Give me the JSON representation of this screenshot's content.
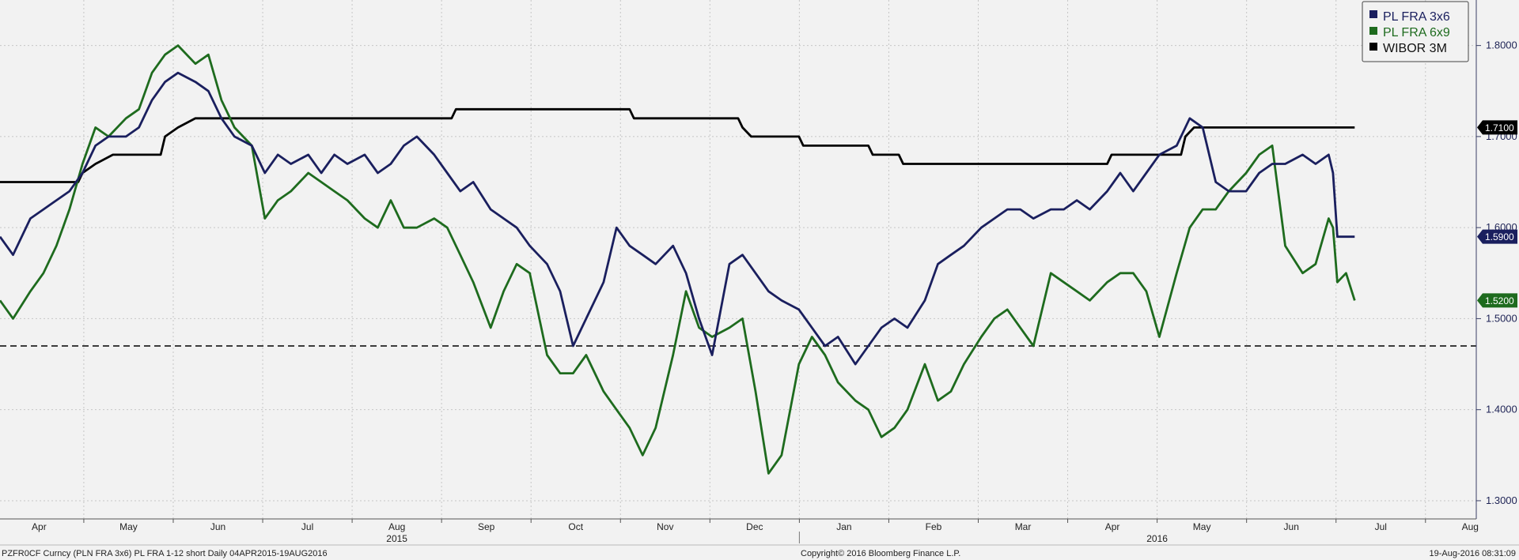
{
  "chart_data": {
    "type": "line",
    "title": "",
    "xlabel": "",
    "ylabel": "",
    "ylim": [
      1.28,
      1.85
    ],
    "y_ticks": [
      "1.3000",
      "1.4000",
      "1.5000",
      "1.6000",
      "1.7000",
      "1.8000"
    ],
    "x_months": [
      "Apr",
      "May",
      "Jun",
      "Jul",
      "Aug",
      "Sep",
      "Oct",
      "Nov",
      "Dec",
      "Jan",
      "Feb",
      "Mar",
      "Apr",
      "May",
      "Jun",
      "Jul",
      "Aug"
    ],
    "x_years": [
      "2015",
      "2016"
    ],
    "grid": true,
    "legend_position": "top-right",
    "reference_line": 1.47,
    "series": [
      {
        "name": "PL FRA 3x6",
        "color": "#1a1f5e",
        "last_label": "1.5900",
        "points": [
          [
            0,
            1.59
          ],
          [
            3,
            1.57
          ],
          [
            7,
            1.61
          ],
          [
            10,
            1.62
          ],
          [
            13,
            1.63
          ],
          [
            16,
            1.64
          ],
          [
            19,
            1.66
          ],
          [
            22,
            1.69
          ],
          [
            25,
            1.7
          ],
          [
            29,
            1.7
          ],
          [
            32,
            1.71
          ],
          [
            35,
            1.74
          ],
          [
            38,
            1.76
          ],
          [
            41,
            1.77
          ],
          [
            45,
            1.76
          ],
          [
            48,
            1.75
          ],
          [
            51,
            1.72
          ],
          [
            54,
            1.7
          ],
          [
            58,
            1.69
          ],
          [
            61,
            1.66
          ],
          [
            64,
            1.68
          ],
          [
            67,
            1.67
          ],
          [
            71,
            1.68
          ],
          [
            74,
            1.66
          ],
          [
            77,
            1.68
          ],
          [
            80,
            1.67
          ],
          [
            84,
            1.68
          ],
          [
            87,
            1.66
          ],
          [
            90,
            1.67
          ],
          [
            93,
            1.69
          ],
          [
            96,
            1.7
          ],
          [
            100,
            1.68
          ],
          [
            103,
            1.66
          ],
          [
            106,
            1.64
          ],
          [
            109,
            1.65
          ],
          [
            113,
            1.62
          ],
          [
            116,
            1.61
          ],
          [
            119,
            1.6
          ],
          [
            122,
            1.58
          ],
          [
            126,
            1.56
          ],
          [
            129,
            1.53
          ],
          [
            132,
            1.47
          ],
          [
            135,
            1.5
          ],
          [
            139,
            1.54
          ],
          [
            142,
            1.6
          ],
          [
            145,
            1.58
          ],
          [
            148,
            1.57
          ],
          [
            151,
            1.56
          ],
          [
            155,
            1.58
          ],
          [
            158,
            1.55
          ],
          [
            161,
            1.5
          ],
          [
            164,
            1.46
          ],
          [
            168,
            1.56
          ],
          [
            171,
            1.57
          ],
          [
            174,
            1.55
          ],
          [
            177,
            1.53
          ],
          [
            180,
            1.52
          ],
          [
            184,
            1.51
          ],
          [
            187,
            1.49
          ],
          [
            190,
            1.47
          ],
          [
            193,
            1.48
          ],
          [
            197,
            1.45
          ],
          [
            200,
            1.47
          ],
          [
            203,
            1.49
          ],
          [
            206,
            1.5
          ],
          [
            209,
            1.49
          ],
          [
            213,
            1.52
          ],
          [
            216,
            1.56
          ],
          [
            219,
            1.57
          ],
          [
            222,
            1.58
          ],
          [
            226,
            1.6
          ],
          [
            229,
            1.61
          ],
          [
            232,
            1.62
          ],
          [
            235,
            1.62
          ],
          [
            238,
            1.61
          ],
          [
            242,
            1.62
          ],
          [
            245,
            1.62
          ],
          [
            248,
            1.63
          ],
          [
            251,
            1.62
          ],
          [
            255,
            1.64
          ],
          [
            258,
            1.66
          ],
          [
            261,
            1.64
          ],
          [
            264,
            1.66
          ],
          [
            267,
            1.68
          ],
          [
            271,
            1.69
          ],
          [
            274,
            1.72
          ],
          [
            277,
            1.71
          ],
          [
            280,
            1.65
          ],
          [
            283,
            1.64
          ],
          [
            287,
            1.64
          ],
          [
            290,
            1.66
          ],
          [
            293,
            1.67
          ],
          [
            296,
            1.67
          ],
          [
            300,
            1.68
          ],
          [
            303,
            1.67
          ],
          [
            306,
            1.68
          ],
          [
            307,
            1.66
          ],
          [
            308,
            1.59
          ],
          [
            310,
            1.59
          ],
          [
            312,
            1.59
          ]
        ]
      },
      {
        "name": "PL FRA 6x9",
        "color": "#1e6b1e",
        "last_label": "1.5200",
        "points": [
          [
            0,
            1.52
          ],
          [
            3,
            1.5
          ],
          [
            7,
            1.53
          ],
          [
            10,
            1.55
          ],
          [
            13,
            1.58
          ],
          [
            16,
            1.62
          ],
          [
            19,
            1.67
          ],
          [
            22,
            1.71
          ],
          [
            25,
            1.7
          ],
          [
            29,
            1.72
          ],
          [
            32,
            1.73
          ],
          [
            35,
            1.77
          ],
          [
            38,
            1.79
          ],
          [
            41,
            1.8
          ],
          [
            45,
            1.78
          ],
          [
            48,
            1.79
          ],
          [
            51,
            1.74
          ],
          [
            54,
            1.71
          ],
          [
            58,
            1.69
          ],
          [
            61,
            1.61
          ],
          [
            64,
            1.63
          ],
          [
            67,
            1.64
          ],
          [
            71,
            1.66
          ],
          [
            74,
            1.65
          ],
          [
            77,
            1.64
          ],
          [
            80,
            1.63
          ],
          [
            84,
            1.61
          ],
          [
            87,
            1.6
          ],
          [
            90,
            1.63
          ],
          [
            93,
            1.6
          ],
          [
            96,
            1.6
          ],
          [
            100,
            1.61
          ],
          [
            103,
            1.6
          ],
          [
            106,
            1.57
          ],
          [
            109,
            1.54
          ],
          [
            113,
            1.49
          ],
          [
            116,
            1.53
          ],
          [
            119,
            1.56
          ],
          [
            122,
            1.55
          ],
          [
            126,
            1.46
          ],
          [
            129,
            1.44
          ],
          [
            132,
            1.44
          ],
          [
            135,
            1.46
          ],
          [
            139,
            1.42
          ],
          [
            142,
            1.4
          ],
          [
            145,
            1.38
          ],
          [
            148,
            1.35
          ],
          [
            151,
            1.38
          ],
          [
            155,
            1.46
          ],
          [
            158,
            1.53
          ],
          [
            161,
            1.49
          ],
          [
            164,
            1.48
          ],
          [
            168,
            1.49
          ],
          [
            171,
            1.5
          ],
          [
            174,
            1.42
          ],
          [
            177,
            1.33
          ],
          [
            180,
            1.35
          ],
          [
            184,
            1.45
          ],
          [
            187,
            1.48
          ],
          [
            190,
            1.46
          ],
          [
            193,
            1.43
          ],
          [
            197,
            1.41
          ],
          [
            200,
            1.4
          ],
          [
            203,
            1.37
          ],
          [
            206,
            1.38
          ],
          [
            209,
            1.4
          ],
          [
            213,
            1.45
          ],
          [
            216,
            1.41
          ],
          [
            219,
            1.42
          ],
          [
            222,
            1.45
          ],
          [
            226,
            1.48
          ],
          [
            229,
            1.5
          ],
          [
            232,
            1.51
          ],
          [
            235,
            1.49
          ],
          [
            238,
            1.47
          ],
          [
            242,
            1.55
          ],
          [
            245,
            1.54
          ],
          [
            248,
            1.53
          ],
          [
            251,
            1.52
          ],
          [
            255,
            1.54
          ],
          [
            258,
            1.55
          ],
          [
            261,
            1.55
          ],
          [
            264,
            1.53
          ],
          [
            267,
            1.48
          ],
          [
            271,
            1.55
          ],
          [
            274,
            1.6
          ],
          [
            277,
            1.62
          ],
          [
            280,
            1.62
          ],
          [
            283,
            1.64
          ],
          [
            287,
            1.66
          ],
          [
            290,
            1.68
          ],
          [
            293,
            1.69
          ],
          [
            296,
            1.58
          ],
          [
            300,
            1.55
          ],
          [
            303,
            1.56
          ],
          [
            306,
            1.61
          ],
          [
            307,
            1.6
          ],
          [
            308,
            1.54
          ],
          [
            310,
            1.55
          ],
          [
            312,
            1.52
          ]
        ]
      },
      {
        "name": "WIBOR 3M",
        "color": "#000000",
        "last_label": "1.7100",
        "points": [
          [
            0,
            1.65
          ],
          [
            18,
            1.65
          ],
          [
            19,
            1.66
          ],
          [
            22,
            1.67
          ],
          [
            26,
            1.68
          ],
          [
            37,
            1.68
          ],
          [
            38,
            1.7
          ],
          [
            41,
            1.71
          ],
          [
            45,
            1.72
          ],
          [
            104,
            1.72
          ],
          [
            105,
            1.73
          ],
          [
            145,
            1.73
          ],
          [
            146,
            1.72
          ],
          [
            170,
            1.72
          ],
          [
            171,
            1.71
          ],
          [
            173,
            1.7
          ],
          [
            184,
            1.7
          ],
          [
            185,
            1.69
          ],
          [
            200,
            1.69
          ],
          [
            201,
            1.68
          ],
          [
            207,
            1.68
          ],
          [
            208,
            1.67
          ],
          [
            255,
            1.67
          ],
          [
            256,
            1.68
          ],
          [
            272,
            1.68
          ],
          [
            273,
            1.7
          ],
          [
            275,
            1.71
          ],
          [
            312,
            1.71
          ]
        ]
      }
    ]
  },
  "footer": {
    "left": "PZFR0CF Curncy (PLN FRA 3x6) PL FRA 1-12 short  Daily 04APR2015-19AUG2016",
    "center": "Copyright© 2016 Bloomberg Finance L.P.",
    "right": "19-Aug-2016 08:31:09"
  }
}
